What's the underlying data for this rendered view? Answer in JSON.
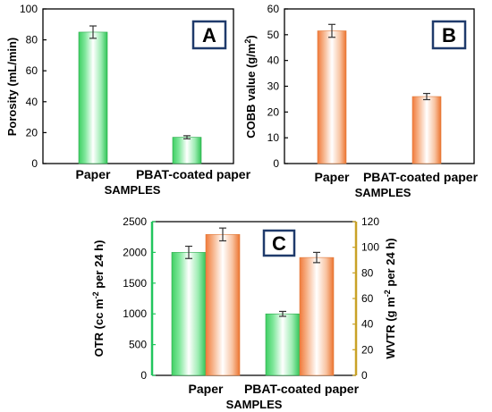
{
  "chart_data": [
    {
      "id": "A",
      "type": "bar",
      "panel_label": "A",
      "categories": [
        "Paper",
        "PBAT-coated paper"
      ],
      "values": [
        85,
        17
      ],
      "errors": [
        4,
        1
      ],
      "xlabel": "SAMPLES",
      "ylabel": "Porosity (mL/min)",
      "ylim": [
        0,
        100
      ],
      "yticks": [
        0,
        20,
        40,
        60,
        80,
        100
      ],
      "bar_color": "#22c55e",
      "axis_color": "#000000",
      "grid": false
    },
    {
      "id": "B",
      "type": "bar",
      "panel_label": "B",
      "categories": [
        "Paper",
        "PBAT-coated paper"
      ],
      "values": [
        51.5,
        26
      ],
      "errors": [
        2.5,
        1.2
      ],
      "xlabel": "SAMPLES",
      "ylabel_main": "COBB value (g/m",
      "ylabel_sup": "2",
      "ylabel_end": ")",
      "ylim": [
        0,
        60
      ],
      "yticks": [
        0,
        10,
        20,
        30,
        40,
        50,
        60
      ],
      "bar_color": "#f28a4e",
      "axis_color": "#000000",
      "grid": false
    },
    {
      "id": "C",
      "type": "bar",
      "panel_label": "C",
      "categories": [
        "Paper",
        "PBAT-coated paper"
      ],
      "xlabel": "SAMPLES",
      "series": [
        {
          "key": "OTR",
          "values": [
            2000,
            1000
          ],
          "errors": [
            100,
            40
          ],
          "color": "#22c55e",
          "axis": "left",
          "ylabel_parts": [
            "OTR (cc m",
            "-2",
            " per 24 h)"
          ]
        },
        {
          "key": "WVTR",
          "values": [
            110,
            92
          ],
          "errors": [
            5,
            4
          ],
          "color": "#f28a4e",
          "axis": "right",
          "ylabel_parts": [
            "WVTR (g m",
            "-2",
            " per 24 h)"
          ]
        }
      ],
      "ylim_left": [
        0,
        2500
      ],
      "yticks_left": [
        0,
        500,
        1000,
        1500,
        2000,
        2500
      ],
      "ylim_right": [
        0,
        120
      ],
      "yticks_right": [
        0,
        20,
        40,
        60,
        80,
        100,
        120
      ],
      "left_axis_color": "#22c55e",
      "right_axis_color": "#c9a227",
      "grid": false
    }
  ]
}
